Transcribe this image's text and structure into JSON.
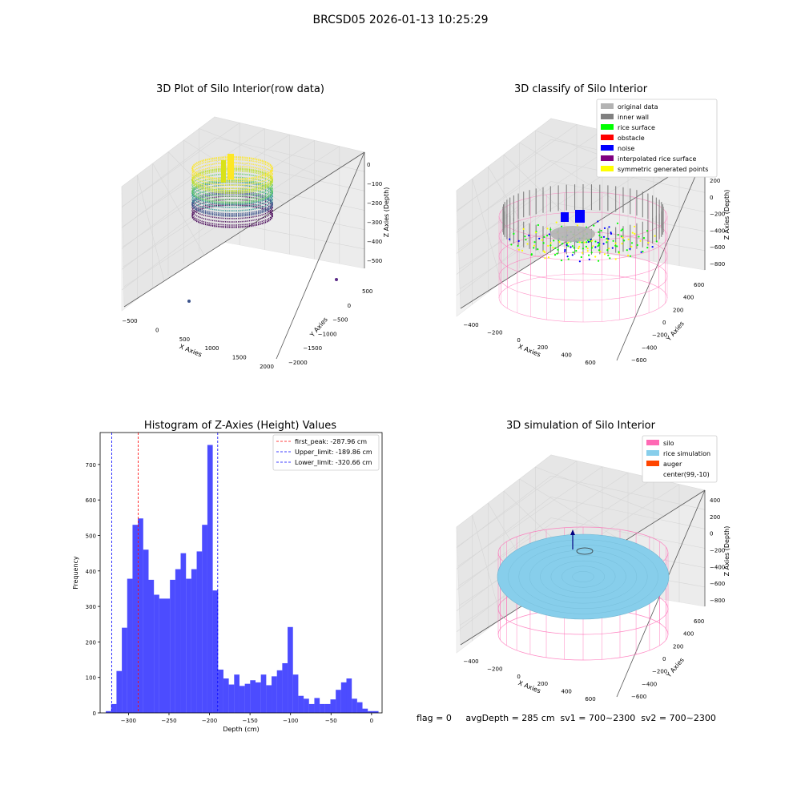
{
  "figure": {
    "suptitle": "BRCSD05 2026-01-13 10:25:29",
    "footer": "flag = 0     avgDepth = 285 cm  sv1 = 700~2300  sv2 = 700~2300"
  },
  "colors": {
    "original_data": "#b3b3b3",
    "inner_wall": "#808080",
    "rice_surface": "#00ff00",
    "obstacle": "#ff0000",
    "noise": "#0000ff",
    "interpolated_rice_surface": "#800080",
    "symmetric_generated_points": "#ffff00",
    "silo": "#ff69b4",
    "rice_simulation": "#87ceeb",
    "auger": "#ff4500",
    "histogram_bar": "#0000ff",
    "first_peak_line": "#ff0000",
    "limit_line": "#0000ff"
  },
  "chart_data": [
    {
      "type": "scatter",
      "title": "3D Plot of Silo Interior(row data)",
      "xlabel": "X Axies",
      "ylabel": "Y Axies",
      "zlabel": "Z Axies (Depth)",
      "x_ticks": [
        "−500",
        "0",
        "500",
        "1000",
        "1500",
        "2000"
      ],
      "y_ticks": [
        "−2000",
        "−1500",
        "−1000",
        "−500",
        "0",
        "500"
      ],
      "z_ticks": [
        "0",
        "−100",
        "−200",
        "−300",
        "−400",
        "−500"
      ],
      "colormap": "viridis"
    },
    {
      "type": "scatter",
      "title": "3D classify of Silo Interior",
      "xlabel": "X Axies",
      "ylabel": "Y Axies",
      "zlabel": "Z Axies (Depth)",
      "x_ticks": [
        "−400",
        "−200",
        "0",
        "200",
        "400",
        "600"
      ],
      "y_ticks": [
        "−600",
        "−400",
        "−200",
        "0",
        "200",
        "400",
        "600"
      ],
      "z_ticks": [
        "200",
        "0",
        "−200",
        "−400",
        "−600",
        "−800"
      ],
      "legend": [
        "original data",
        "inner wall",
        "rice surface",
        "obstacle",
        "noise",
        "interpolated rice surface",
        "symmetric generated points"
      ],
      "legend_position": "top-right"
    },
    {
      "type": "bar",
      "title": "Histogram of Z-Axies (Height) Values",
      "xlabel": "Depth (cm)",
      "ylabel": "Frequency",
      "xlim": [
        -335,
        13
      ],
      "ylim": [
        0,
        790
      ],
      "x_ticks": [
        -300,
        -250,
        -200,
        -150,
        -100,
        -50,
        0
      ],
      "y_ticks": [
        0,
        100,
        200,
        300,
        400,
        500,
        600,
        700
      ],
      "bin_start": -328,
      "bin_width": 6.6,
      "values": [
        5,
        25,
        118,
        240,
        378,
        530,
        548,
        460,
        375,
        333,
        322,
        322,
        375,
        405,
        450,
        378,
        405,
        455,
        530,
        755,
        345,
        122,
        97,
        80,
        108,
        76,
        82,
        92,
        86,
        108,
        78,
        103,
        120,
        140,
        242,
        108,
        48,
        40,
        25,
        42,
        25,
        25,
        38,
        65,
        86,
        97,
        40,
        30,
        12,
        5,
        5
      ],
      "lines": [
        {
          "label": "first_peak: -287.96 cm",
          "x": -287.96,
          "color": "#ff0000"
        },
        {
          "label": "Upper_limit: -189.86 cm",
          "x": -189.86,
          "color": "#0000ff"
        },
        {
          "label": "Lower_limit: -320.66 cm",
          "x": -320.66,
          "color": "#0000ff"
        }
      ],
      "legend_position": "top-right"
    },
    {
      "type": "scatter",
      "title": "3D simulation of Silo Interior",
      "xlabel": "X Axies",
      "ylabel": "Y Axies",
      "zlabel": "Z Axies (Depth)",
      "x_ticks": [
        "−400",
        "−200",
        "0",
        "200",
        "400",
        "600"
      ],
      "y_ticks": [
        "−600",
        "−400",
        "−200",
        "0",
        "200",
        "400",
        "600"
      ],
      "z_ticks": [
        "400",
        "200",
        "0",
        "−200",
        "−400",
        "−600",
        "−800"
      ],
      "legend": [
        "silo",
        "rice simulation",
        "auger",
        "center(99,-10)"
      ],
      "legend_position": "top-right"
    }
  ]
}
